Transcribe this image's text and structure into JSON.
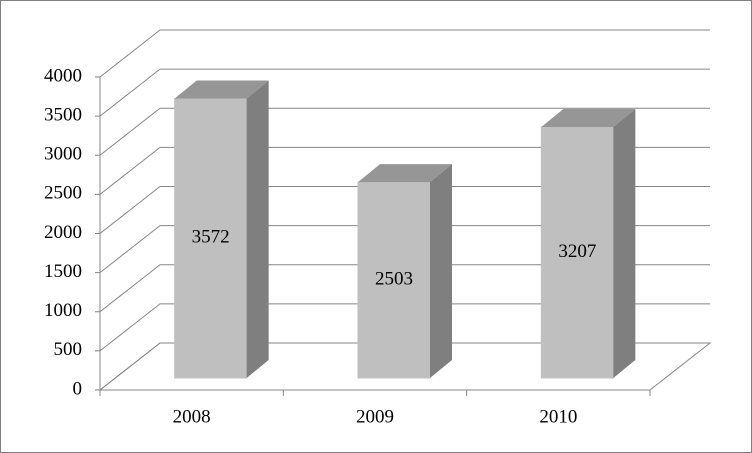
{
  "chart_data": {
    "type": "bar",
    "categories": [
      "2008",
      "2009",
      "2010"
    ],
    "values": [
      3572,
      2503,
      3207
    ],
    "ylim": [
      0,
      4000
    ],
    "yticks": [
      0,
      500,
      1000,
      1500,
      2000,
      2500,
      3000,
      3500,
      4000
    ],
    "grid": true,
    "color": "#bfbfbf"
  }
}
